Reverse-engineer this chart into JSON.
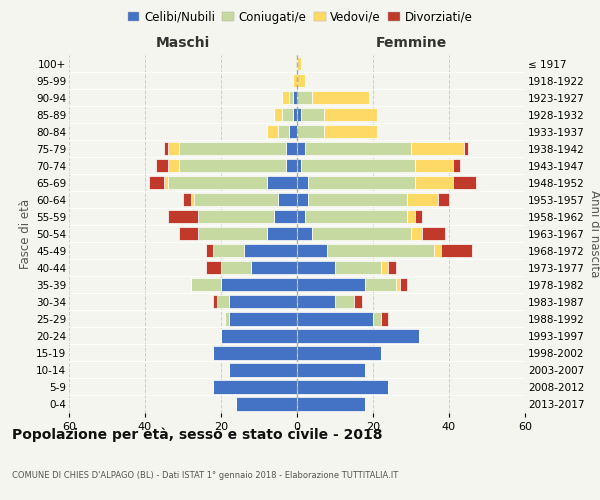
{
  "age_groups": [
    "0-4",
    "5-9",
    "10-14",
    "15-19",
    "20-24",
    "25-29",
    "30-34",
    "35-39",
    "40-44",
    "45-49",
    "50-54",
    "55-59",
    "60-64",
    "65-69",
    "70-74",
    "75-79",
    "80-84",
    "85-89",
    "90-94",
    "95-99",
    "100+"
  ],
  "birth_years": [
    "2013-2017",
    "2008-2012",
    "2003-2007",
    "1998-2002",
    "1993-1997",
    "1988-1992",
    "1983-1987",
    "1978-1982",
    "1973-1977",
    "1968-1972",
    "1963-1967",
    "1958-1962",
    "1953-1957",
    "1948-1952",
    "1943-1947",
    "1938-1942",
    "1933-1937",
    "1928-1932",
    "1923-1927",
    "1918-1922",
    "≤ 1917"
  ],
  "colors": {
    "celibi": "#4472c4",
    "coniugati": "#c5d9a0",
    "vedovi": "#ffd966",
    "divorziati": "#c0392b"
  },
  "males": {
    "celibi": [
      16,
      22,
      18,
      22,
      20,
      18,
      18,
      20,
      12,
      14,
      8,
      6,
      5,
      8,
      3,
      3,
      2,
      1,
      1,
      0,
      0
    ],
    "coniugati": [
      0,
      0,
      0,
      0,
      0,
      1,
      3,
      8,
      8,
      8,
      18,
      20,
      22,
      26,
      28,
      28,
      3,
      3,
      1,
      0,
      0
    ],
    "vedovi": [
      0,
      0,
      0,
      0,
      0,
      0,
      0,
      0,
      0,
      0,
      0,
      0,
      1,
      1,
      3,
      3,
      3,
      2,
      2,
      1,
      0
    ],
    "divorziati": [
      0,
      0,
      0,
      0,
      0,
      0,
      1,
      0,
      4,
      2,
      5,
      8,
      2,
      4,
      3,
      1,
      0,
      0,
      0,
      0,
      0
    ]
  },
  "females": {
    "celibi": [
      18,
      24,
      18,
      22,
      32,
      20,
      10,
      18,
      10,
      8,
      4,
      2,
      3,
      3,
      1,
      2,
      0,
      1,
      0,
      0,
      0
    ],
    "coniugati": [
      0,
      0,
      0,
      0,
      0,
      2,
      5,
      8,
      12,
      28,
      26,
      27,
      26,
      28,
      30,
      28,
      7,
      6,
      4,
      0,
      0
    ],
    "vedovi": [
      0,
      0,
      0,
      0,
      0,
      0,
      0,
      1,
      2,
      2,
      3,
      2,
      8,
      10,
      10,
      14,
      14,
      14,
      15,
      2,
      1
    ],
    "divorziati": [
      0,
      0,
      0,
      0,
      0,
      2,
      2,
      2,
      2,
      8,
      6,
      2,
      3,
      6,
      2,
      1,
      0,
      0,
      0,
      0,
      0
    ]
  },
  "xlim": 60,
  "title": "Popolazione per età, sesso e stato civile - 2018",
  "subtitle": "COMUNE DI CHIES D'ALPAGO (BL) - Dati ISTAT 1° gennaio 2018 - Elaborazione TUTTITALIA.IT",
  "ylabel": "Fasce di età",
  "ylabel_right": "Anni di nascita",
  "bg_color": "#f5f5ef",
  "grid_color": "#cccccc",
  "maschi_label": "Maschi",
  "femmine_label": "Femmine",
  "legend_labels": [
    "Celibi/Nubili",
    "Coniugati/e",
    "Vedovi/e",
    "Divorziati/e"
  ]
}
